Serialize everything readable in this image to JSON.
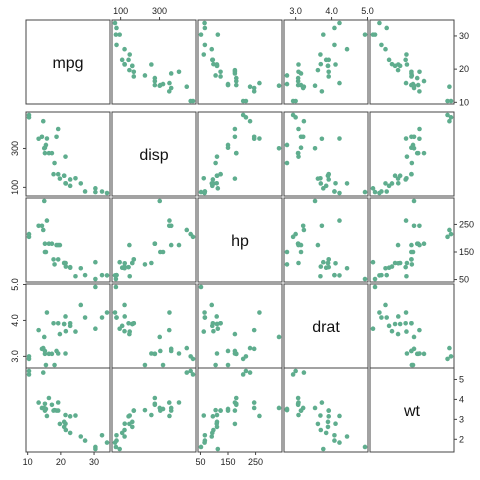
{
  "chart_data": {
    "type": "scatter",
    "subtype": "scatterplot-matrix",
    "point_color": "#5fad8e",
    "variables": [
      "mpg",
      "disp",
      "hp",
      "drat",
      "wt"
    ],
    "ranges": {
      "mpg": [
        10.4,
        33.9
      ],
      "disp": [
        71.1,
        472
      ],
      "hp": [
        52,
        335
      ],
      "drat": [
        2.76,
        4.93
      ],
      "wt": [
        1.513,
        5.424
      ]
    },
    "ticks": {
      "mpg": [
        10,
        20,
        30
      ],
      "disp": [
        100,
        300
      ],
      "hp": [
        50,
        150,
        250
      ],
      "drat": [
        3.0,
        4.0,
        5.0
      ],
      "wt": [
        2,
        3,
        4,
        5
      ]
    },
    "tick_labels": {
      "mpg": [
        "10",
        "20",
        "30"
      ],
      "disp": [
        "100",
        "300"
      ],
      "hp": [
        "50",
        "150",
        "250"
      ],
      "drat": [
        "3.0",
        "4.0",
        "5.0"
      ],
      "wt": [
        "2",
        "3",
        "4",
        "5"
      ]
    },
    "axis_layout": {
      "top": {
        "1": "disp",
        "3": "drat"
      },
      "right": {
        "0": "mpg",
        "2": "hp",
        "4": "wt"
      },
      "left": {
        "1": "disp",
        "3": "drat"
      },
      "bottom": {
        "0": "mpg",
        "2": "hp"
      }
    },
    "grid": false,
    "legend": "none",
    "records": [
      {
        "mpg": 21.0,
        "disp": 160.0,
        "hp": 110,
        "drat": 3.9,
        "wt": 2.62
      },
      {
        "mpg": 21.0,
        "disp": 160.0,
        "hp": 110,
        "drat": 3.9,
        "wt": 2.875
      },
      {
        "mpg": 22.8,
        "disp": 108.0,
        "hp": 93,
        "drat": 3.85,
        "wt": 2.32
      },
      {
        "mpg": 21.4,
        "disp": 258.0,
        "hp": 110,
        "drat": 3.08,
        "wt": 3.215
      },
      {
        "mpg": 18.7,
        "disp": 360.0,
        "hp": 175,
        "drat": 3.15,
        "wt": 3.44
      },
      {
        "mpg": 18.1,
        "disp": 225.0,
        "hp": 105,
        "drat": 2.76,
        "wt": 3.46
      },
      {
        "mpg": 14.3,
        "disp": 360.0,
        "hp": 245,
        "drat": 3.21,
        "wt": 3.57
      },
      {
        "mpg": 24.4,
        "disp": 146.7,
        "hp": 62,
        "drat": 3.69,
        "wt": 3.19
      },
      {
        "mpg": 22.8,
        "disp": 140.8,
        "hp": 95,
        "drat": 3.92,
        "wt": 3.15
      },
      {
        "mpg": 19.2,
        "disp": 167.6,
        "hp": 123,
        "drat": 3.92,
        "wt": 3.44
      },
      {
        "mpg": 17.8,
        "disp": 167.6,
        "hp": 123,
        "drat": 3.92,
        "wt": 3.44
      },
      {
        "mpg": 16.4,
        "disp": 275.8,
        "hp": 180,
        "drat": 3.07,
        "wt": 4.07
      },
      {
        "mpg": 17.3,
        "disp": 275.8,
        "hp": 180,
        "drat": 3.07,
        "wt": 3.73
      },
      {
        "mpg": 15.2,
        "disp": 275.8,
        "hp": 180,
        "drat": 3.07,
        "wt": 3.78
      },
      {
        "mpg": 10.4,
        "disp": 472.0,
        "hp": 205,
        "drat": 2.93,
        "wt": 5.25
      },
      {
        "mpg": 10.4,
        "disp": 460.0,
        "hp": 215,
        "drat": 3.0,
        "wt": 5.424
      },
      {
        "mpg": 14.7,
        "disp": 440.0,
        "hp": 230,
        "drat": 3.23,
        "wt": 5.345
      },
      {
        "mpg": 32.4,
        "disp": 78.7,
        "hp": 66,
        "drat": 4.08,
        "wt": 2.2
      },
      {
        "mpg": 30.4,
        "disp": 75.7,
        "hp": 52,
        "drat": 4.93,
        "wt": 1.615
      },
      {
        "mpg": 33.9,
        "disp": 71.1,
        "hp": 65,
        "drat": 4.22,
        "wt": 1.835
      },
      {
        "mpg": 21.5,
        "disp": 120.1,
        "hp": 97,
        "drat": 3.7,
        "wt": 2.465
      },
      {
        "mpg": 15.5,
        "disp": 318.0,
        "hp": 150,
        "drat": 2.76,
        "wt": 3.52
      },
      {
        "mpg": 15.2,
        "disp": 304.0,
        "hp": 150,
        "drat": 3.15,
        "wt": 3.435
      },
      {
        "mpg": 13.3,
        "disp": 350.0,
        "hp": 245,
        "drat": 3.73,
        "wt": 3.84
      },
      {
        "mpg": 19.2,
        "disp": 400.0,
        "hp": 175,
        "drat": 3.08,
        "wt": 3.845
      },
      {
        "mpg": 27.3,
        "disp": 79.0,
        "hp": 66,
        "drat": 4.08,
        "wt": 1.935
      },
      {
        "mpg": 26.0,
        "disp": 120.3,
        "hp": 91,
        "drat": 4.43,
        "wt": 2.14
      },
      {
        "mpg": 30.4,
        "disp": 95.1,
        "hp": 113,
        "drat": 3.77,
        "wt": 1.513
      },
      {
        "mpg": 15.8,
        "disp": 351.0,
        "hp": 264,
        "drat": 4.22,
        "wt": 3.17
      },
      {
        "mpg": 19.7,
        "disp": 145.0,
        "hp": 175,
        "drat": 3.62,
        "wt": 2.77
      },
      {
        "mpg": 15.0,
        "disp": 301.0,
        "hp": 335,
        "drat": 3.54,
        "wt": 3.57
      },
      {
        "mpg": 21.4,
        "disp": 121.0,
        "hp": 109,
        "drat": 4.11,
        "wt": 2.78
      }
    ]
  }
}
